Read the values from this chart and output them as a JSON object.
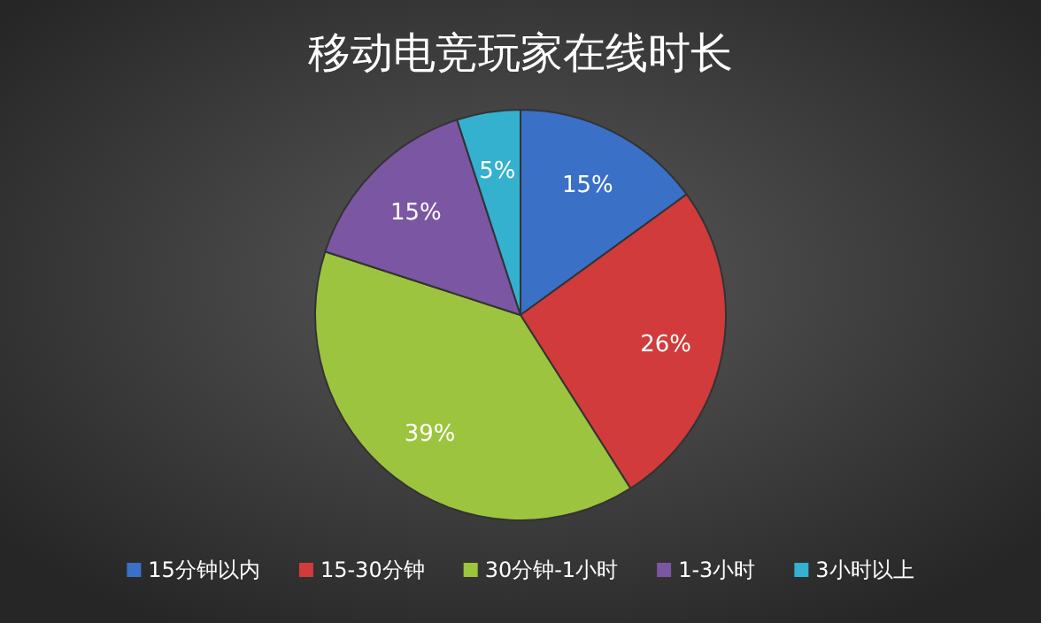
{
  "chart_data": {
    "type": "pie",
    "title": "移动电竞玩家在线时长",
    "categories": [
      "15分钟以内",
      "15-30分钟",
      "30分钟-1小时",
      "1-3小时",
      "3小时以上"
    ],
    "values": [
      15,
      26,
      39,
      15,
      5
    ],
    "colors": [
      "#3a70c6",
      "#d13b3b",
      "#9cc43e",
      "#7b56a2",
      "#33b1cf"
    ],
    "value_labels": [
      "15%",
      "26%",
      "39%",
      "15%",
      "5%"
    ],
    "legend": "bottom"
  }
}
